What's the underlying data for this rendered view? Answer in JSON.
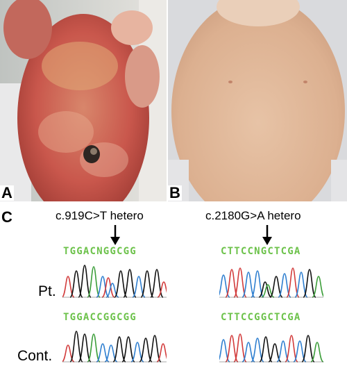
{
  "panels": {
    "a": {
      "label": "A"
    },
    "b": {
      "label": "B"
    },
    "c": {
      "label": "C"
    }
  },
  "mutations": [
    {
      "label": "c.919C>T hetero",
      "patient_seq": "TGGACNGGCGG",
      "control_seq": "TGGACCGGCGG"
    },
    {
      "label": "c.2180G>A hetero",
      "patient_seq": "CTTCCNGCTCGA",
      "control_seq": "CTTCCGGCTCGA"
    }
  ],
  "rows": {
    "patient": "Pt.",
    "control": "Cont."
  }
}
